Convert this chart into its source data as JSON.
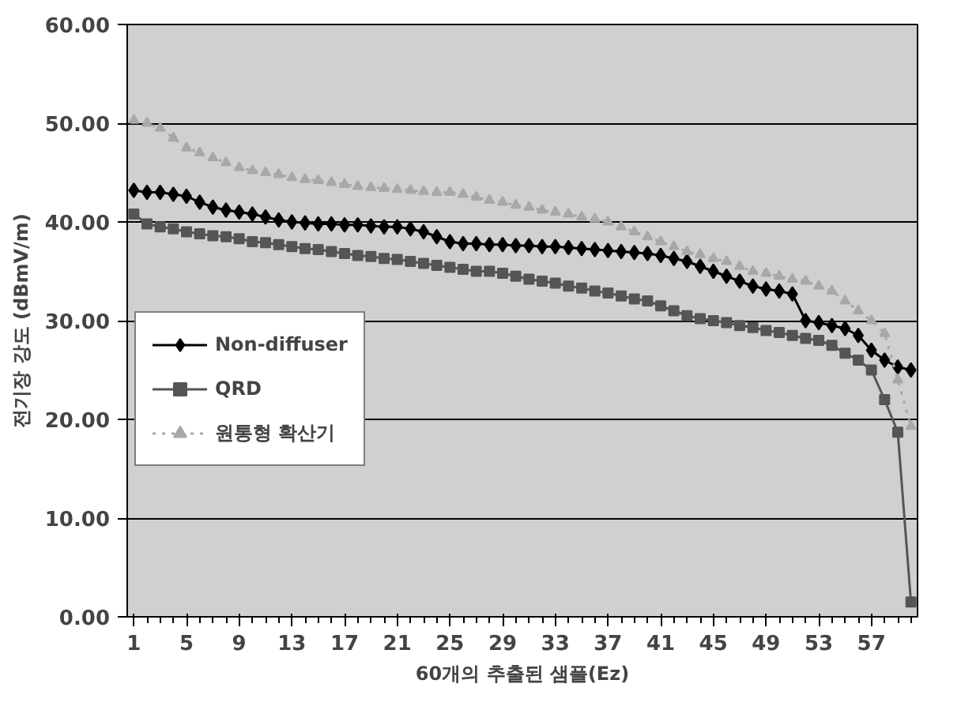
{
  "chart_data": {
    "type": "line",
    "xlabel": "60개의 추출된 샘플(Ez)",
    "ylabel": "전기장 강도 (dBmV/m)",
    "x": [
      1,
      2,
      3,
      4,
      5,
      6,
      7,
      8,
      9,
      10,
      11,
      12,
      13,
      14,
      15,
      16,
      17,
      18,
      19,
      20,
      21,
      22,
      23,
      24,
      25,
      26,
      27,
      28,
      29,
      30,
      31,
      32,
      33,
      34,
      35,
      36,
      37,
      38,
      39,
      40,
      41,
      42,
      43,
      44,
      45,
      46,
      47,
      48,
      49,
      50,
      51,
      52,
      53,
      54,
      55,
      56,
      57,
      58,
      59,
      60
    ],
    "xlim": [
      0.5,
      60.5
    ],
    "xticks": [
      1,
      5,
      9,
      13,
      17,
      21,
      25,
      29,
      33,
      37,
      41,
      45,
      49,
      53,
      57
    ],
    "ylim": [
      0,
      60
    ],
    "yticks": [
      {
        "value": 0,
        "label": "0.00"
      },
      {
        "value": 10,
        "label": "10.00"
      },
      {
        "value": 20,
        "label": "20.00"
      },
      {
        "value": 30,
        "label": "30.00"
      },
      {
        "value": 40,
        "label": "40.00"
      },
      {
        "value": 50,
        "label": "50.00"
      },
      {
        "value": 60,
        "label": "60.00"
      }
    ],
    "grid": "y",
    "legend": "left",
    "series": [
      {
        "name": "Non-diffuser",
        "color": "#000000",
        "marker": "diamond",
        "line_style": "solid",
        "values": [
          43.2,
          43.0,
          43.0,
          42.8,
          42.6,
          42.0,
          41.5,
          41.2,
          41.0,
          40.8,
          40.5,
          40.2,
          40.0,
          39.9,
          39.8,
          39.8,
          39.7,
          39.7,
          39.6,
          39.5,
          39.5,
          39.3,
          39.0,
          38.5,
          38.0,
          37.8,
          37.8,
          37.7,
          37.7,
          37.6,
          37.6,
          37.5,
          37.5,
          37.4,
          37.3,
          37.2,
          37.1,
          37.0,
          36.9,
          36.8,
          36.6,
          36.3,
          36.0,
          35.5,
          35.0,
          34.5,
          34.0,
          33.5,
          33.2,
          33.0,
          32.7,
          30.0,
          29.8,
          29.5,
          29.2,
          28.5,
          27.0,
          26.0,
          25.3,
          25.0
        ]
      },
      {
        "name": "QRD",
        "color": "#555555",
        "marker": "square",
        "line_style": "solid",
        "values": [
          40.8,
          39.8,
          39.5,
          39.3,
          39.0,
          38.8,
          38.6,
          38.5,
          38.3,
          38.0,
          37.9,
          37.7,
          37.5,
          37.3,
          37.2,
          37.0,
          36.8,
          36.6,
          36.5,
          36.3,
          36.2,
          36.0,
          35.8,
          35.6,
          35.4,
          35.2,
          35.0,
          35.0,
          34.8,
          34.5,
          34.2,
          34.0,
          33.8,
          33.5,
          33.3,
          33.0,
          32.8,
          32.5,
          32.2,
          32.0,
          31.5,
          31.0,
          30.5,
          30.2,
          30.0,
          29.8,
          29.5,
          29.3,
          29.0,
          28.8,
          28.5,
          28.2,
          28.0,
          27.5,
          26.7,
          26.0,
          25.0,
          22.0,
          18.7,
          1.5
        ]
      },
      {
        "name": "원통형 확산기",
        "color": "#a8a8a8",
        "marker": "triangle",
        "line_style": "dotted",
        "values": [
          50.3,
          50.0,
          49.5,
          48.5,
          47.5,
          47.0,
          46.5,
          46.0,
          45.5,
          45.2,
          45.0,
          44.8,
          44.5,
          44.3,
          44.2,
          44.0,
          43.8,
          43.6,
          43.5,
          43.4,
          43.3,
          43.2,
          43.1,
          43.0,
          43.0,
          42.8,
          42.5,
          42.2,
          42.0,
          41.7,
          41.5,
          41.2,
          41.0,
          40.8,
          40.5,
          40.3,
          40.0,
          39.5,
          39.0,
          38.5,
          38.0,
          37.5,
          37.0,
          36.7,
          36.3,
          36.0,
          35.5,
          35.0,
          34.8,
          34.5,
          34.2,
          34.0,
          33.5,
          33.0,
          32.0,
          31.0,
          30.0,
          28.7,
          24.0,
          19.3
        ]
      }
    ]
  }
}
